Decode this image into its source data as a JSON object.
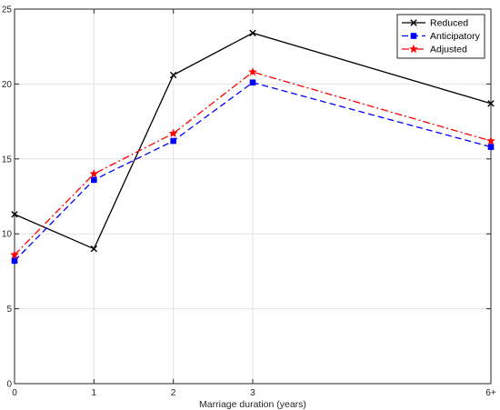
{
  "chart_data": {
    "type": "line",
    "title": "",
    "xlabel": "Marriage duration (years)",
    "ylabel": "",
    "categories": [
      "0",
      "1",
      "2",
      "3",
      "6+"
    ],
    "x": [
      0,
      1,
      2,
      3,
      6
    ],
    "xlim": [
      0,
      6
    ],
    "ylim": [
      0,
      25
    ],
    "yticks": [
      0,
      5,
      10,
      15,
      20,
      25
    ],
    "grid": true,
    "legend_position": "top-right",
    "series": [
      {
        "name": "Reduced",
        "values": [
          11.3,
          9.0,
          20.6,
          23.4,
          18.7
        ],
        "color": "#000000",
        "marker": "x",
        "dash": "solid"
      },
      {
        "name": "Anticipatory",
        "values": [
          8.2,
          13.6,
          16.2,
          20.1,
          15.8
        ],
        "color": "#0000ff",
        "marker": "square",
        "dash": "dashed"
      },
      {
        "name": "Adjusted",
        "values": [
          8.6,
          14.0,
          16.7,
          20.8,
          16.2
        ],
        "color": "#ff0000",
        "marker": "star",
        "dash": "dashdot"
      }
    ]
  }
}
